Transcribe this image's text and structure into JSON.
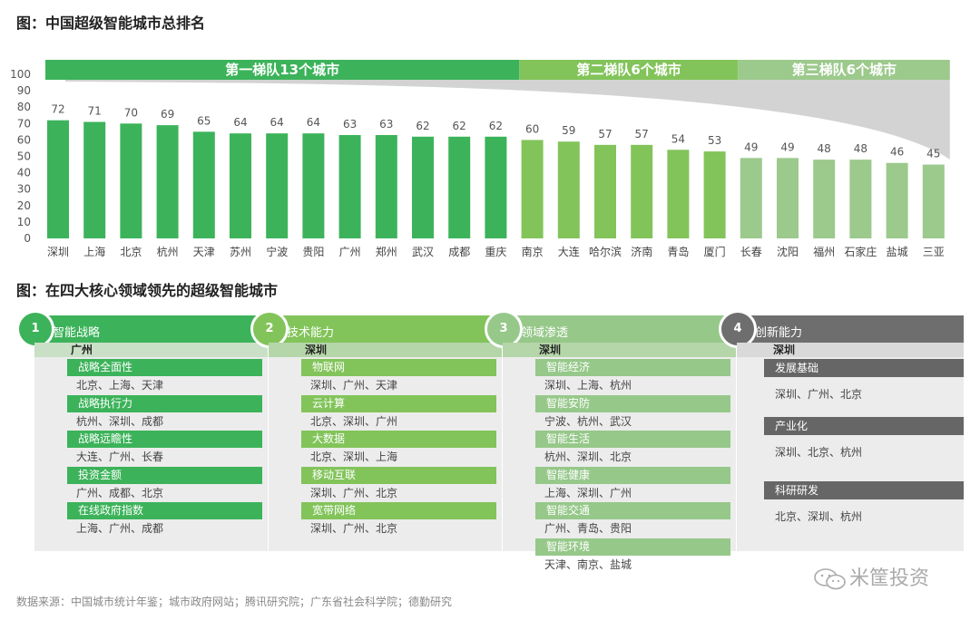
{
  "chart_title": "图：中国超级智能城市总排名",
  "chart_data": {
    "type": "bar",
    "ylim": [
      0,
      100
    ],
    "yticks": [
      0,
      10,
      20,
      30,
      40,
      50,
      60,
      70,
      80,
      90,
      100
    ],
    "categories": [
      "深圳",
      "上海",
      "北京",
      "杭州",
      "天津",
      "苏州",
      "宁波",
      "贵阳",
      "广州",
      "郑州",
      "武汉",
      "成都",
      "重庆",
      "南京",
      "大连",
      "哈尔滨",
      "济南",
      "青岛",
      "厦门",
      "长春",
      "沈阳",
      "福州",
      "石家庄",
      "盐城",
      "三亚"
    ],
    "values": [
      72,
      71,
      70,
      69,
      65,
      64,
      64,
      64,
      63,
      63,
      62,
      62,
      62,
      60,
      59,
      57,
      57,
      54,
      53,
      49,
      49,
      48,
      48,
      46,
      45
    ],
    "tiers": [
      {
        "label": "第一梯队13个城市",
        "count": 13,
        "color": "#3cb35a"
      },
      {
        "label": "第二梯队6个城市",
        "count": 6,
        "color": "#82c45a"
      },
      {
        "label": "第三梯队6个城市",
        "count": 6,
        "color": "#9cc98c"
      }
    ],
    "tier_bar_colors": [
      "#3cb35a",
      "#82c45a",
      "#9cc98c"
    ]
  },
  "section2_title": "图：在四大核心领域领先的超级智能城市",
  "panels": [
    {
      "num": "1",
      "title": "智能战略",
      "city": "广州",
      "color": "#3cb35a",
      "items": [
        {
          "h": "战略全面性",
          "v": "北京、上海、天津"
        },
        {
          "h": "战略执行力",
          "v": "杭州、深圳、成都"
        },
        {
          "h": "战略远瞻性",
          "v": "大连、广州、长春"
        },
        {
          "h": "投资金额",
          "v": "广州、成都、北京"
        },
        {
          "h": "在线政府指数",
          "v": "上海、广州、成都"
        }
      ]
    },
    {
      "num": "2",
      "title": "技术能力",
      "city": "深圳",
      "color": "#82c45a",
      "items": [
        {
          "h": "物联网",
          "v": "深圳、广州、天津"
        },
        {
          "h": "云计算",
          "v": "北京、深圳、广州"
        },
        {
          "h": "大数据",
          "v": "北京、深圳、上海"
        },
        {
          "h": "移动互联",
          "v": "深圳、广州、北京"
        },
        {
          "h": "宽带网络",
          "v": "深圳、广州、北京"
        }
      ]
    },
    {
      "num": "3",
      "title": "领域渗透",
      "city": "深圳",
      "color": "#96c88a",
      "items": [
        {
          "h": "智能经济",
          "v": "深圳、上海、杭州"
        },
        {
          "h": "智能安防",
          "v": "宁波、杭州、武汉"
        },
        {
          "h": "智能生活",
          "v": "杭州、深圳、北京"
        },
        {
          "h": "智能健康",
          "v": "上海、深圳、广州"
        },
        {
          "h": "智能交通",
          "v": "广州、青岛、贵阳"
        },
        {
          "h": "智能环境",
          "v": "天津、南京、盐城"
        }
      ]
    },
    {
      "num": "4",
      "title": "创新能力",
      "city": "深圳",
      "color": "#6e6e6e",
      "items": [
        {
          "h": "发展基础",
          "v": "深圳、广州、北京"
        },
        {
          "h": "产业化",
          "v": "深圳、北京、杭州"
        },
        {
          "h": "科研研发",
          "v": "北京、深圳、杭州"
        }
      ]
    }
  ],
  "source": "数据来源：中国城市统计年鉴；城市政府网站；腾讯研究院；广东省社会科学院；德勤研究",
  "brand": "米筐投资"
}
